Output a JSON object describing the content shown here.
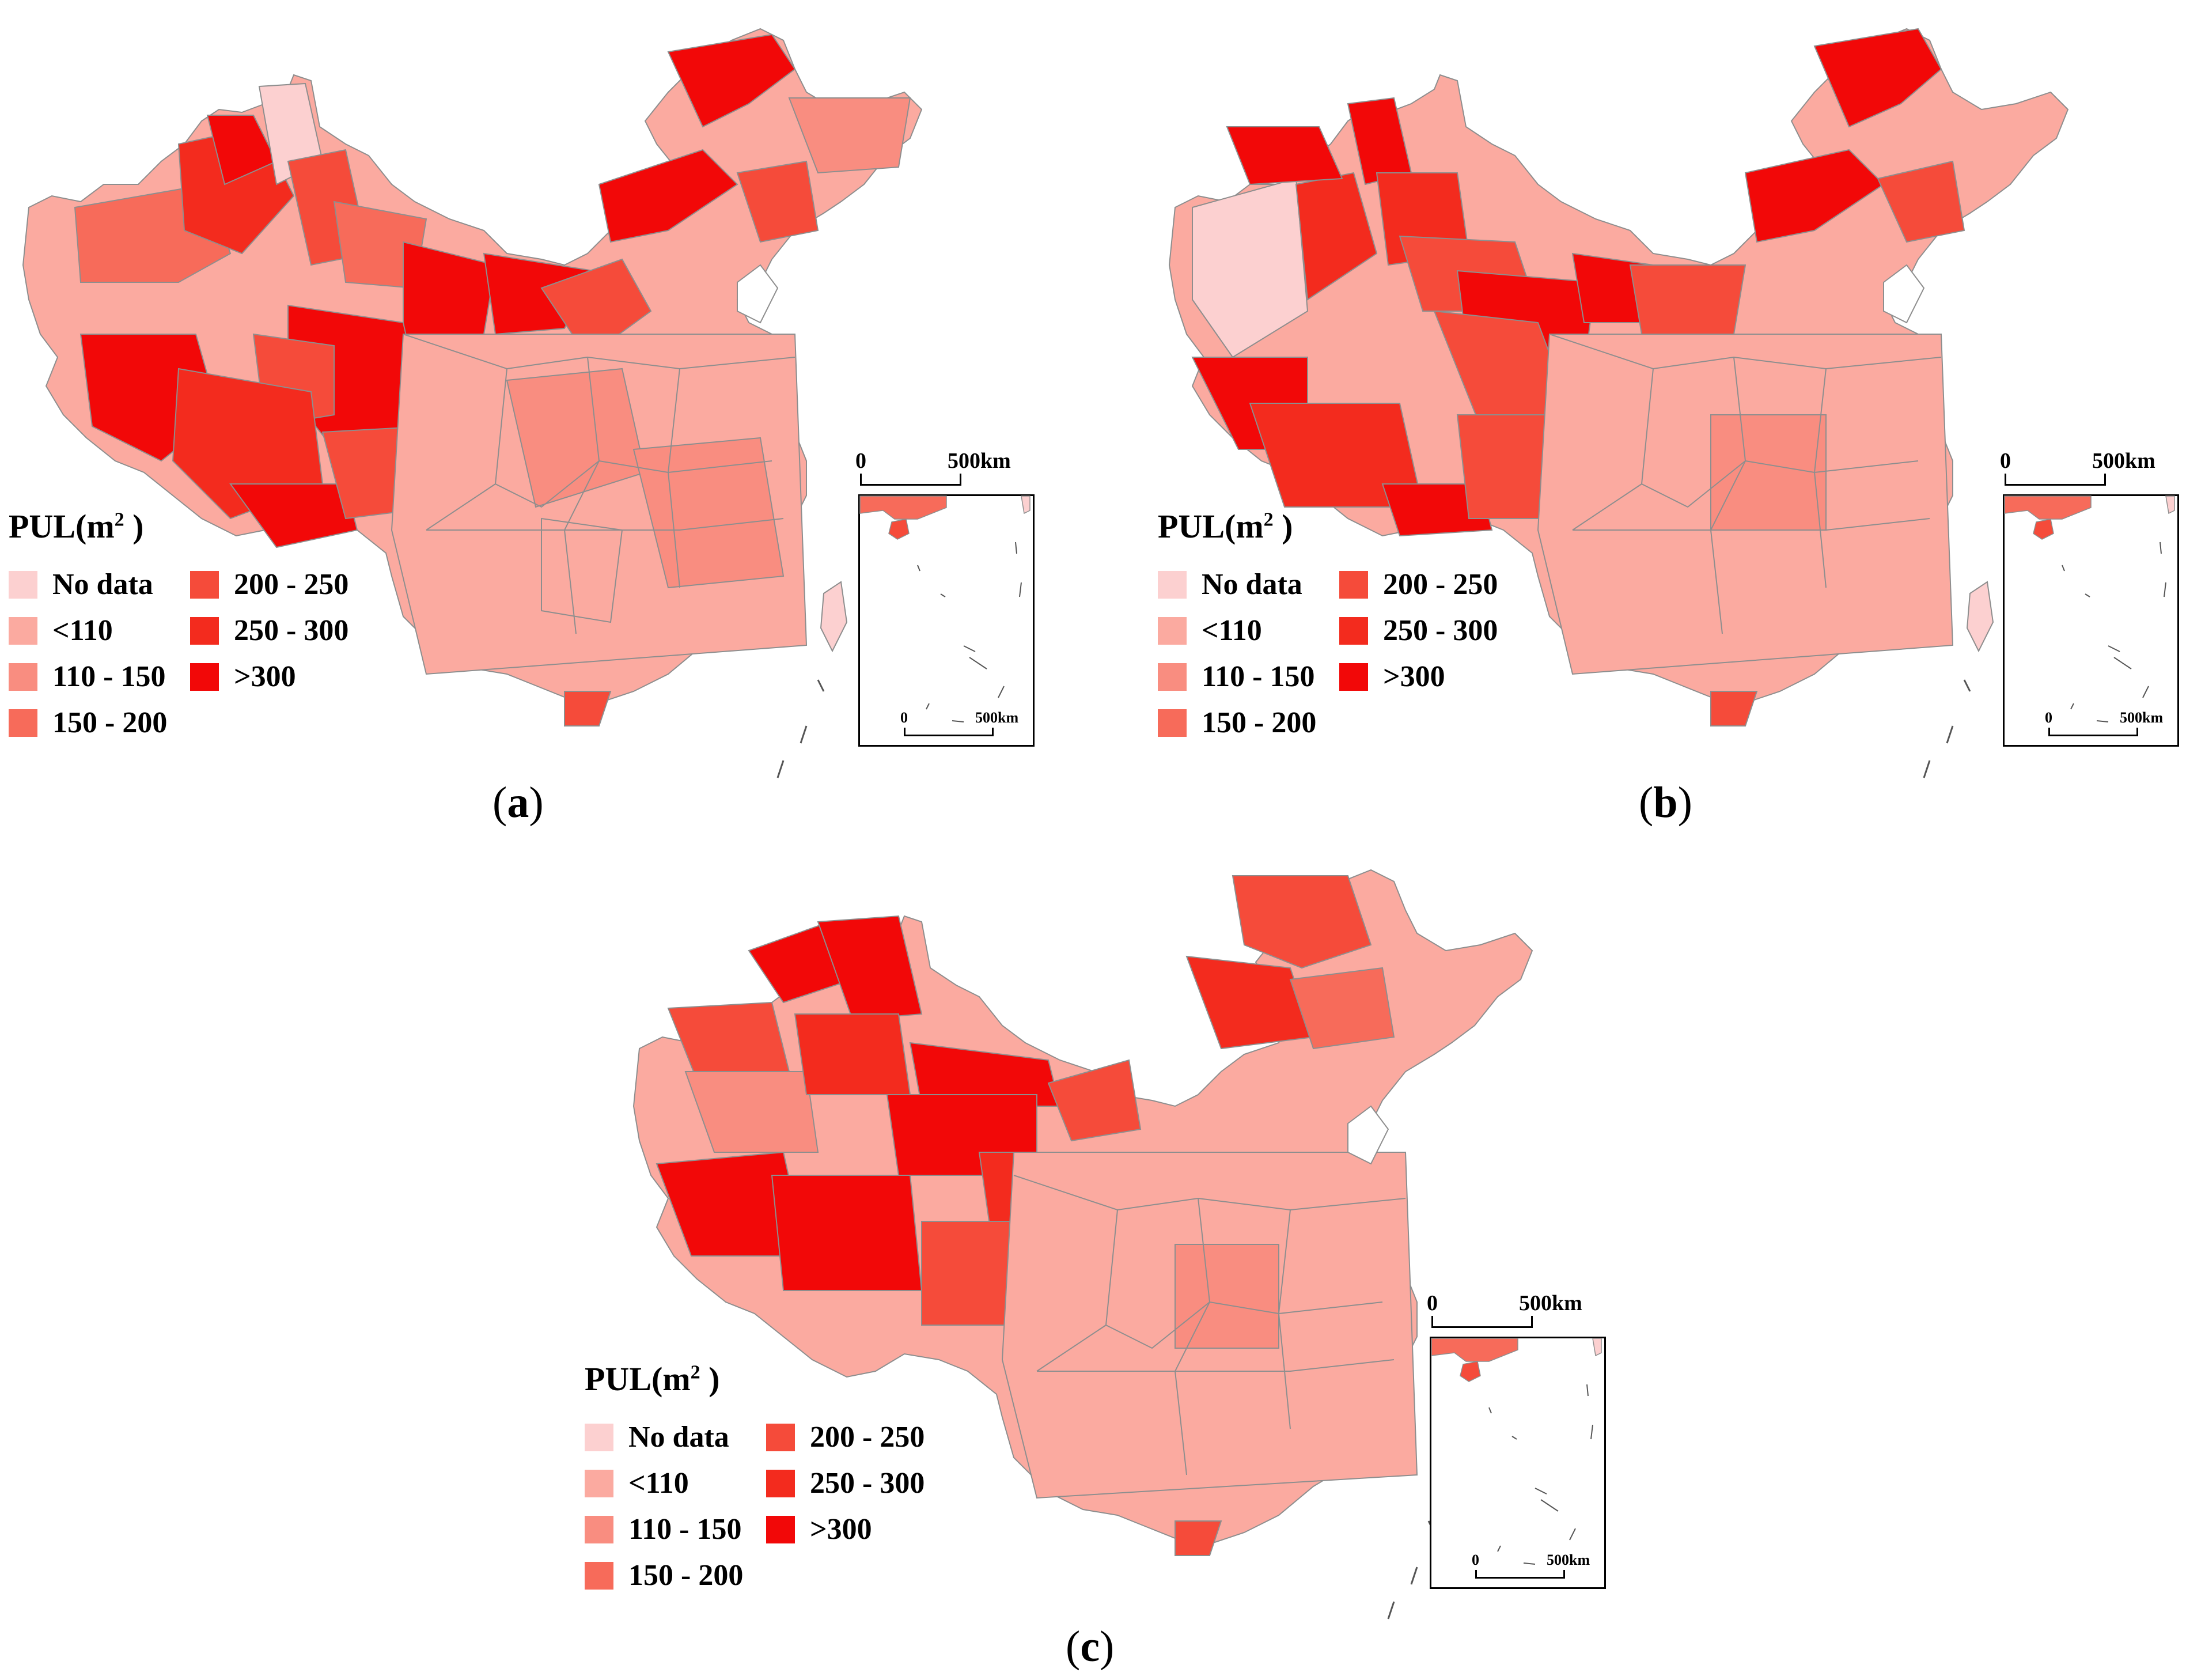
{
  "colors": {
    "no_data": "#fcd0d0",
    "lt110": "#fbaaa0",
    "110_150": "#f98d80",
    "150_200": "#f76b5a",
    "200_250": "#f54b3a",
    "250_300": "#f32b1e",
    "gt300": "#f20808",
    "border": "#8e8e8e"
  },
  "legend": {
    "title_base": "PUL(m",
    "title_sup": "2",
    "title_end": " )",
    "items": [
      {
        "label": "No data",
        "color_key": "no_data"
      },
      {
        "label": "<110",
        "color_key": "lt110"
      },
      {
        "label": "110 - 150",
        "color_key": "110_150"
      },
      {
        "label": "150 - 200",
        "color_key": "150_200"
      },
      {
        "label": "200 - 250",
        "color_key": "200_250"
      },
      {
        "label": "250 - 300",
        "color_key": "250_300"
      },
      {
        "label": ">300",
        "color_key": "gt300"
      }
    ]
  },
  "scalebar": {
    "zero": "0",
    "distance": "500km"
  },
  "panels": [
    {
      "caption_open": "(",
      "caption_letter": "a",
      "caption_close": ")"
    },
    {
      "caption_open": "(",
      "caption_letter": "b",
      "caption_close": ")"
    },
    {
      "caption_open": "(",
      "caption_letter": "c",
      "caption_close": ")"
    }
  ]
}
